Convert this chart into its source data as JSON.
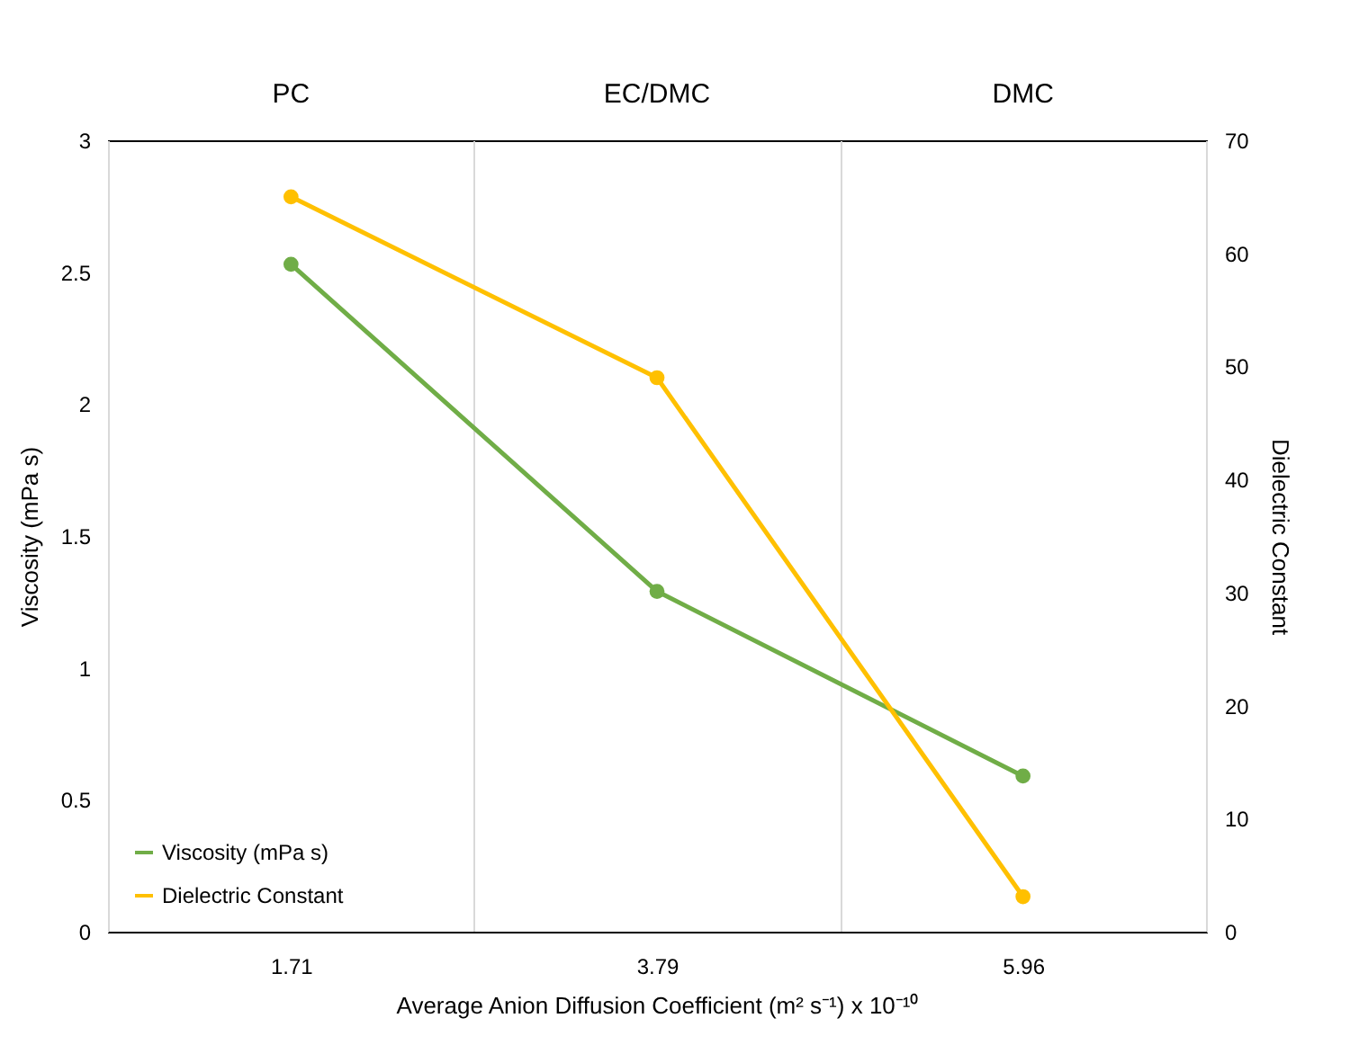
{
  "chart_data": {
    "type": "line",
    "xlabel": "Average Anion Diffusion Coefficient (m² s⁻¹) x 10⁻¹⁰",
    "ylabel": "Viscosity (mPa s)",
    "y2label": "Dielectric Constant",
    "categories": [
      "1.71",
      "3.79",
      "5.96"
    ],
    "series": [
      {
        "name": "Viscosity (mPa s)",
        "color": "#70ad47",
        "values": [
          2.53,
          1.29,
          0.59
        ]
      },
      {
        "name": "Dielectric Constant",
        "color": "#ffc000",
        "values": [
          65,
          49,
          3.1
        ],
        "axis": "y2"
      }
    ],
    "ylim": [
      0,
      3
    ],
    "yticks": [
      0,
      0.5,
      1,
      1.5,
      2,
      2.5,
      3
    ],
    "y2lim": [
      0,
      70
    ],
    "y2ticks": [
      0,
      10,
      20,
      30,
      40,
      50,
      60,
      70
    ],
    "annotations": [
      "PC",
      "EC/DMC",
      "DMC"
    ],
    "grid": "x",
    "legend": "bottom left",
    "marker": "circle",
    "line_style": "solid"
  }
}
